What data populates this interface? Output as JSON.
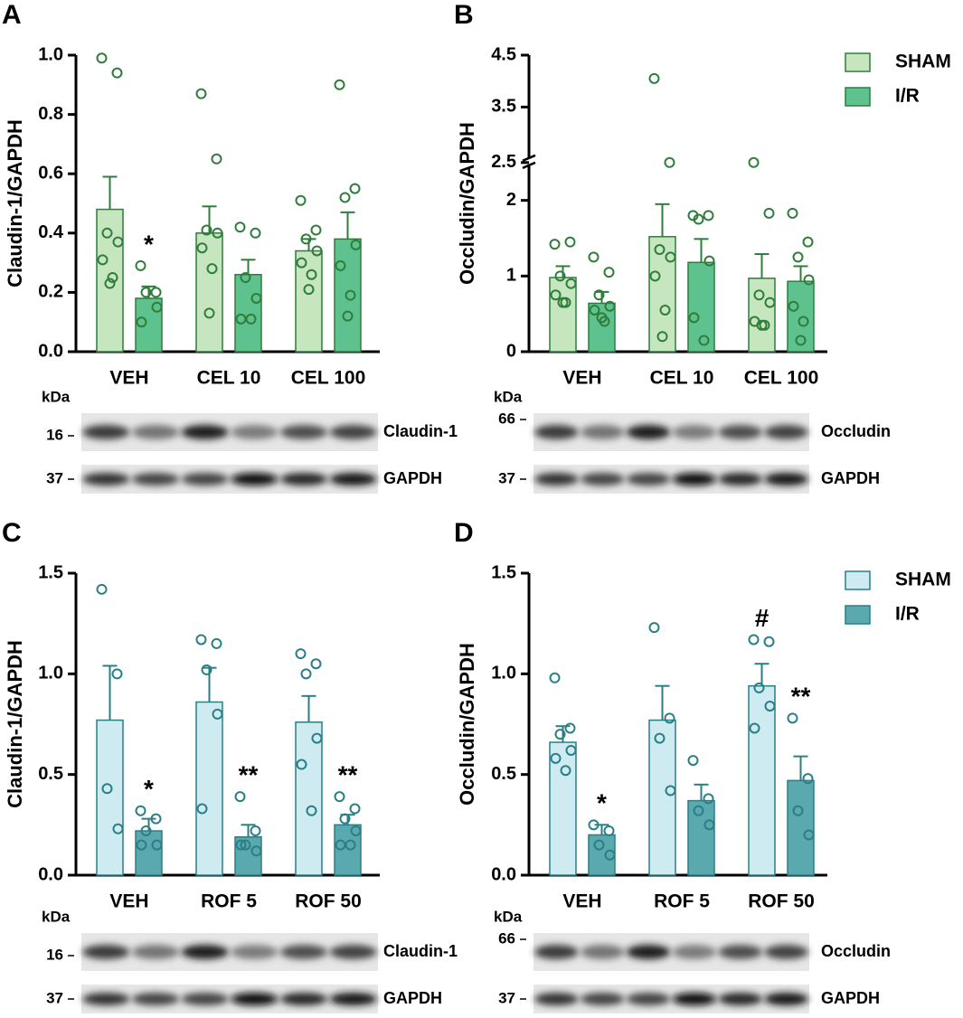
{
  "chart_data": [
    {
      "type": "bar",
      "panel": "A",
      "ylabel": "Claudin-1/GAPDH",
      "categories": [
        "VEH",
        "CEL 10",
        "CEL 100"
      ],
      "ylim": [
        0,
        1
      ],
      "yticks": [
        {
          "value": 0,
          "label": "0.0"
        },
        {
          "value": 0.2,
          "label": "0.2"
        },
        {
          "value": 0.4,
          "label": "0.4"
        },
        {
          "value": 0.6,
          "label": "0.6"
        },
        {
          "value": 0.8,
          "label": "0.8"
        },
        {
          "value": 1,
          "label": "1.0"
        }
      ],
      "edgecolor": "#2f7d3b",
      "series": [
        {
          "color": "#c6e6c0",
          "values": [
            0.48,
            0.4,
            0.34
          ],
          "errors": [
            0.11,
            0.09,
            0.04
          ],
          "points": [
            [
              0.99,
              0.94,
              0.4,
              0.37,
              0.31,
              0.25,
              0.23
            ],
            [
              0.87,
              0.65,
              0.41,
              0.4,
              0.35,
              0.28,
              0.13
            ],
            [
              0.51,
              0.41,
              0.38,
              0.34,
              0.3,
              0.26,
              0.21
            ]
          ]
        },
        {
          "color": "#5ec28e",
          "values": [
            0.18,
            0.26,
            0.38
          ],
          "errors": [
            0.04,
            0.05,
            0.09
          ],
          "points": [
            [
              0.29,
              0.2,
              0.2,
              0.15,
              0.1
            ],
            [
              0.42,
              0.4,
              0.25,
              0.18,
              0.11,
              0.11
            ],
            [
              0.9,
              0.55,
              0.52,
              0.36,
              0.29,
              0.19,
              0.12
            ]
          ]
        }
      ],
      "annotations": [
        {
          "text": "*",
          "category": 0,
          "series": 1
        }
      ],
      "blot": {
        "unit": "kDa",
        "rows": [
          {
            "marker": "16",
            "label": "Claudin-1"
          },
          {
            "marker": "37",
            "label": "GAPDH"
          }
        ]
      }
    },
    {
      "type": "bar",
      "panel": "B",
      "ylabel": "Occludin/GAPDH",
      "categories": [
        "VEH",
        "CEL 10",
        "CEL 100"
      ],
      "ylim": [
        0,
        4.5
      ],
      "axis_break": 2.5,
      "yticks": [
        0,
        1,
        2,
        2.5,
        3.5,
        4.5
      ],
      "edgecolor": "#2f7d3b",
      "legend": "top-right",
      "series": [
        {
          "name": "SHAM",
          "color": "#c6e6c0",
          "values": [
            0.98,
            1.52,
            0.97
          ],
          "errors": [
            0.15,
            0.43,
            0.32
          ],
          "points": [
            [
              1.42,
              1.45,
              1.0,
              0.9,
              0.75,
              0.65,
              0.65
            ],
            [
              4.05,
              2.5,
              1.35,
              1.25,
              1.0,
              0.55,
              0.2
            ],
            [
              2.5,
              1.83,
              0.75,
              0.65,
              0.4,
              0.35,
              0.35
            ]
          ]
        },
        {
          "name": "I/R",
          "color": "#5ec28e",
          "values": [
            0.64,
            1.18,
            0.93
          ],
          "errors": [
            0.15,
            0.31,
            0.2
          ],
          "points": [
            [
              1.25,
              1.05,
              0.75,
              0.6,
              0.55,
              0.4,
              0.45
            ],
            [
              1.8,
              1.8,
              1.75,
              1.2,
              0.45,
              0.15
            ],
            [
              1.83,
              1.45,
              1.25,
              0.95,
              0.6,
              0.4,
              0.15
            ]
          ]
        }
      ],
      "annotations": [],
      "blot": {
        "unit": "kDa",
        "rows": [
          {
            "marker": "66",
            "label": "Occludin"
          },
          {
            "marker": "37",
            "label": "GAPDH"
          }
        ]
      }
    },
    {
      "type": "bar",
      "panel": "C",
      "ylabel": "Claudin-1/GAPDH",
      "categories": [
        "VEH",
        "ROF 5",
        "ROF 50"
      ],
      "ylim": [
        0,
        1.5
      ],
      "yticks": [
        {
          "value": 0,
          "label": "0.0"
        },
        0.5,
        {
          "value": 1,
          "label": "1.0"
        },
        1.5
      ],
      "edgecolor": "#2a7f86",
      "series": [
        {
          "color": "#cdebf0",
          "values": [
            0.77,
            0.86,
            0.76
          ],
          "errors": [
            0.27,
            0.17,
            0.13
          ],
          "points": [
            [
              1.42,
              1.0,
              0.43,
              0.23
            ],
            [
              1.17,
              1.15,
              1.02,
              0.8,
              0.33
            ],
            [
              1.1,
              1.05,
              1.0,
              0.68,
              0.55,
              0.32
            ]
          ]
        },
        {
          "color": "#5aa9ae",
          "values": [
            0.22,
            0.19,
            0.25
          ],
          "errors": [
            0.06,
            0.06,
            0.05
          ],
          "points": [
            [
              0.32,
              0.28,
              0.22,
              0.15,
              0.15
            ],
            [
              0.39,
              0.22,
              0.15,
              0.12,
              0.15
            ],
            [
              0.39,
              0.33,
              0.28,
              0.22,
              0.15,
              0.15
            ]
          ]
        }
      ],
      "annotations": [
        {
          "text": "*",
          "category": 0,
          "series": 1
        },
        {
          "text": "**",
          "category": 1,
          "series": 1
        },
        {
          "text": "**",
          "category": 2,
          "series": 1
        }
      ],
      "blot": {
        "unit": "kDa",
        "rows": [
          {
            "marker": "16",
            "label": "Claudin-1"
          },
          {
            "marker": "37",
            "label": "GAPDH"
          }
        ]
      }
    },
    {
      "type": "bar",
      "panel": "D",
      "ylabel": "Occludin/GAPDH",
      "categories": [
        "VEH",
        "ROF 5",
        "ROF 50"
      ],
      "ylim": [
        0,
        1.5
      ],
      "yticks": [
        {
          "value": 0,
          "label": "0.0"
        },
        0.5,
        {
          "value": 1,
          "label": "1.0"
        },
        1.5
      ],
      "edgecolor": "#2a7f86",
      "legend": "top-right",
      "series": [
        {
          "name": "SHAM",
          "color": "#cdebf0",
          "values": [
            0.66,
            0.77,
            0.94
          ],
          "errors": [
            0.08,
            0.17,
            0.11
          ],
          "points": [
            [
              0.98,
              0.73,
              0.7,
              0.62,
              0.58,
              0.52
            ],
            [
              1.23,
              0.78,
              0.68,
              0.42
            ],
            [
              1.17,
              1.16,
              0.93,
              0.84,
              0.73
            ]
          ]
        },
        {
          "name": "I/R",
          "color": "#5aa9ae",
          "values": [
            0.2,
            0.37,
            0.47
          ],
          "errors": [
            0.05,
            0.08,
            0.12
          ],
          "points": [
            [
              0.25,
              0.22,
              0.15,
              0.1
            ],
            [
              0.57,
              0.38,
              0.32,
              0.25
            ],
            [
              0.78,
              0.48,
              0.32,
              0.2
            ]
          ]
        }
      ],
      "annotations": [
        {
          "text": "*",
          "category": 0,
          "series": 1
        },
        {
          "text": "#",
          "category": 2,
          "series": 0
        },
        {
          "text": "**",
          "category": 2,
          "series": 1
        }
      ],
      "blot": {
        "unit": "kDa",
        "rows": [
          {
            "marker": "66",
            "label": "Occludin"
          },
          {
            "marker": "37",
            "label": "GAPDH"
          }
        ]
      }
    }
  ]
}
